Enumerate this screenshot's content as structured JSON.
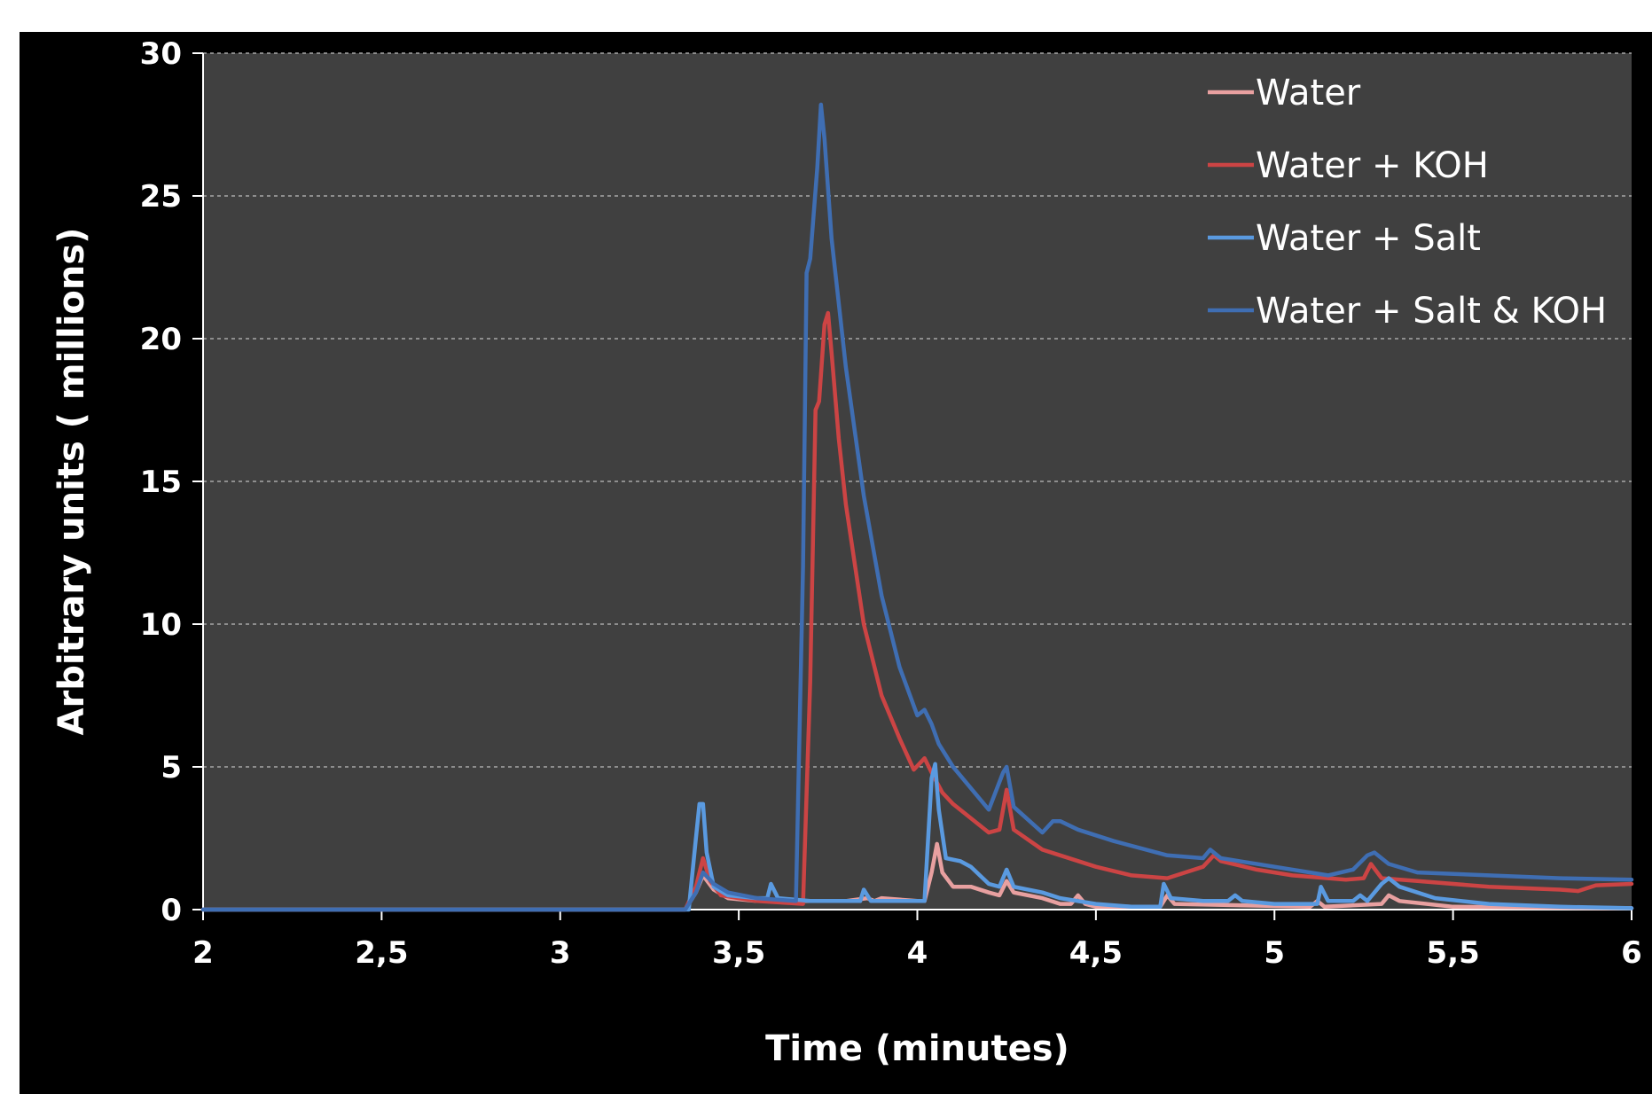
{
  "chart_data": {
    "type": "line",
    "title": "",
    "xlabel": "Time (minutes)",
    "ylabel": "Arbitrary units ( millions)",
    "xlim": [
      2,
      6
    ],
    "ylim": [
      0,
      30
    ],
    "x_ticks": [
      {
        "value": 2,
        "label": "2"
      },
      {
        "value": 2.5,
        "label": "2,5"
      },
      {
        "value": 3,
        "label": "3"
      },
      {
        "value": 3.5,
        "label": "3,5"
      },
      {
        "value": 4,
        "label": "4"
      },
      {
        "value": 4.5,
        "label": "4,5"
      },
      {
        "value": 5,
        "label": "5"
      },
      {
        "value": 5.5,
        "label": "5,5"
      },
      {
        "value": 6,
        "label": "6"
      }
    ],
    "y_ticks": [
      {
        "value": 0,
        "label": "0"
      },
      {
        "value": 5,
        "label": "5"
      },
      {
        "value": 10,
        "label": "10"
      },
      {
        "value": 15,
        "label": "15"
      },
      {
        "value": 20,
        "label": "20"
      },
      {
        "value": 25,
        "label": "25"
      },
      {
        "value": 30,
        "label": "30"
      }
    ],
    "grid": "horizontal dashed",
    "legend_position": "top-right",
    "plot_background": "#404040",
    "figure_background": "#000000",
    "series": [
      {
        "name": "Water",
        "color": "#e8a0a0",
        "points": [
          [
            2,
            0
          ],
          [
            3.35,
            0
          ],
          [
            3.38,
            0.6
          ],
          [
            3.4,
            1.2
          ],
          [
            3.43,
            0.7
          ],
          [
            3.47,
            0.4
          ],
          [
            3.55,
            0.3
          ],
          [
            3.6,
            0.3
          ],
          [
            3.65,
            0.3
          ],
          [
            3.8,
            0.3
          ],
          [
            3.86,
            0.4
          ],
          [
            3.88,
            0.3
          ],
          [
            3.9,
            0.4
          ],
          [
            4.0,
            0.3
          ],
          [
            4.02,
            0.3
          ],
          [
            4.04,
            1.3
          ],
          [
            4.055,
            2.3
          ],
          [
            4.07,
            1.3
          ],
          [
            4.1,
            0.8
          ],
          [
            4.15,
            0.8
          ],
          [
            4.2,
            0.6
          ],
          [
            4.23,
            0.5
          ],
          [
            4.25,
            1.0
          ],
          [
            4.27,
            0.6
          ],
          [
            4.35,
            0.4
          ],
          [
            4.4,
            0.2
          ],
          [
            4.43,
            0.2
          ],
          [
            4.45,
            0.5
          ],
          [
            4.47,
            0.2
          ],
          [
            4.5,
            0.1
          ],
          [
            4.68,
            0.1
          ],
          [
            4.7,
            0.5
          ],
          [
            4.72,
            0.2
          ],
          [
            5.1,
            0.1
          ],
          [
            5.12,
            0.3
          ],
          [
            5.14,
            0.1
          ],
          [
            5.3,
            0.2
          ],
          [
            5.32,
            0.5
          ],
          [
            5.35,
            0.3
          ],
          [
            5.5,
            0.1
          ],
          [
            6.0,
            0.05
          ]
        ]
      },
      {
        "name": "Water + KOH",
        "color": "#cc4444",
        "points": [
          [
            2,
            0
          ],
          [
            3.35,
            0
          ],
          [
            3.38,
            0.8
          ],
          [
            3.4,
            1.8
          ],
          [
            3.42,
            1.0
          ],
          [
            3.45,
            0.5
          ],
          [
            3.55,
            0.3
          ],
          [
            3.68,
            0.2
          ],
          [
            3.7,
            8.0
          ],
          [
            3.715,
            17.5
          ],
          [
            3.725,
            17.8
          ],
          [
            3.74,
            20.5
          ],
          [
            3.75,
            20.9
          ],
          [
            3.76,
            19.5
          ],
          [
            3.78,
            16.5
          ],
          [
            3.8,
            14.2
          ],
          [
            3.85,
            10.0
          ],
          [
            3.9,
            7.5
          ],
          [
            3.95,
            6.0
          ],
          [
            3.99,
            4.9
          ],
          [
            4.02,
            5.3
          ],
          [
            4.04,
            4.8
          ],
          [
            4.07,
            4.1
          ],
          [
            4.1,
            3.7
          ],
          [
            4.2,
            2.7
          ],
          [
            4.23,
            2.8
          ],
          [
            4.25,
            4.2
          ],
          [
            4.27,
            2.8
          ],
          [
            4.35,
            2.1
          ],
          [
            4.4,
            1.9
          ],
          [
            4.5,
            1.5
          ],
          [
            4.6,
            1.2
          ],
          [
            4.7,
            1.1
          ],
          [
            4.75,
            1.3
          ],
          [
            4.8,
            1.5
          ],
          [
            4.83,
            1.9
          ],
          [
            4.85,
            1.7
          ],
          [
            4.95,
            1.4
          ],
          [
            5.05,
            1.2
          ],
          [
            5.2,
            1.05
          ],
          [
            5.25,
            1.1
          ],
          [
            5.27,
            1.6
          ],
          [
            5.3,
            1.1
          ],
          [
            5.4,
            1.0
          ],
          [
            5.6,
            0.8
          ],
          [
            5.8,
            0.7
          ],
          [
            5.85,
            0.65
          ],
          [
            5.9,
            0.85
          ],
          [
            6.0,
            0.9
          ]
        ]
      },
      {
        "name": "Water + Salt",
        "color": "#5a9ae0",
        "points": [
          [
            2,
            0
          ],
          [
            3.36,
            0
          ],
          [
            3.38,
            2.5
          ],
          [
            3.39,
            3.7
          ],
          [
            3.4,
            3.7
          ],
          [
            3.41,
            2.0
          ],
          [
            3.43,
            0.8
          ],
          [
            3.47,
            0.5
          ],
          [
            3.55,
            0.4
          ],
          [
            3.58,
            0.4
          ],
          [
            3.59,
            0.9
          ],
          [
            3.61,
            0.4
          ],
          [
            3.7,
            0.3
          ],
          [
            3.84,
            0.3
          ],
          [
            3.85,
            0.7
          ],
          [
            3.87,
            0.3
          ],
          [
            4.0,
            0.3
          ],
          [
            4.02,
            0.3
          ],
          [
            4.04,
            4.6
          ],
          [
            4.05,
            5.1
          ],
          [
            4.06,
            3.5
          ],
          [
            4.08,
            1.8
          ],
          [
            4.12,
            1.7
          ],
          [
            4.15,
            1.5
          ],
          [
            4.2,
            0.9
          ],
          [
            4.23,
            0.8
          ],
          [
            4.25,
            1.4
          ],
          [
            4.27,
            0.8
          ],
          [
            4.35,
            0.6
          ],
          [
            4.4,
            0.4
          ],
          [
            4.5,
            0.2
          ],
          [
            4.6,
            0.1
          ],
          [
            4.68,
            0.1
          ],
          [
            4.69,
            0.9
          ],
          [
            4.71,
            0.4
          ],
          [
            4.8,
            0.3
          ],
          [
            4.87,
            0.3
          ],
          [
            4.89,
            0.5
          ],
          [
            4.91,
            0.3
          ],
          [
            5.0,
            0.2
          ],
          [
            5.12,
            0.2
          ],
          [
            5.13,
            0.8
          ],
          [
            5.15,
            0.3
          ],
          [
            5.22,
            0.3
          ],
          [
            5.24,
            0.5
          ],
          [
            5.26,
            0.3
          ],
          [
            5.3,
            0.9
          ],
          [
            5.32,
            1.1
          ],
          [
            5.35,
            0.8
          ],
          [
            5.45,
            0.4
          ],
          [
            5.6,
            0.2
          ],
          [
            5.8,
            0.1
          ],
          [
            6.0,
            0.05
          ]
        ]
      },
      {
        "name": "Water + Salt & KOH",
        "color": "#3f6eb3",
        "points": [
          [
            2,
            0
          ],
          [
            3.35,
            0
          ],
          [
            3.38,
            0.6
          ],
          [
            3.4,
            1.3
          ],
          [
            3.43,
            0.9
          ],
          [
            3.47,
            0.6
          ],
          [
            3.55,
            0.4
          ],
          [
            3.66,
            0.3
          ],
          [
            3.68,
            12.0
          ],
          [
            3.69,
            22.3
          ],
          [
            3.7,
            22.8
          ],
          [
            3.72,
            26.0
          ],
          [
            3.73,
            28.2
          ],
          [
            3.74,
            27.0
          ],
          [
            3.76,
            23.5
          ],
          [
            3.8,
            19.0
          ],
          [
            3.85,
            14.5
          ],
          [
            3.9,
            11.0
          ],
          [
            3.95,
            8.5
          ],
          [
            4.0,
            6.8
          ],
          [
            4.02,
            7.0
          ],
          [
            4.04,
            6.5
          ],
          [
            4.06,
            5.8
          ],
          [
            4.1,
            5.0
          ],
          [
            4.2,
            3.5
          ],
          [
            4.24,
            4.8
          ],
          [
            4.25,
            5.0
          ],
          [
            4.27,
            3.6
          ],
          [
            4.35,
            2.7
          ],
          [
            4.38,
            3.1
          ],
          [
            4.4,
            3.1
          ],
          [
            4.45,
            2.8
          ],
          [
            4.55,
            2.4
          ],
          [
            4.7,
            1.9
          ],
          [
            4.8,
            1.8
          ],
          [
            4.82,
            2.1
          ],
          [
            4.85,
            1.8
          ],
          [
            5.0,
            1.5
          ],
          [
            5.15,
            1.2
          ],
          [
            5.22,
            1.4
          ],
          [
            5.26,
            1.9
          ],
          [
            5.28,
            2.0
          ],
          [
            5.32,
            1.6
          ],
          [
            5.4,
            1.3
          ],
          [
            5.6,
            1.2
          ],
          [
            5.8,
            1.1
          ],
          [
            6.0,
            1.05
          ]
        ]
      }
    ]
  }
}
